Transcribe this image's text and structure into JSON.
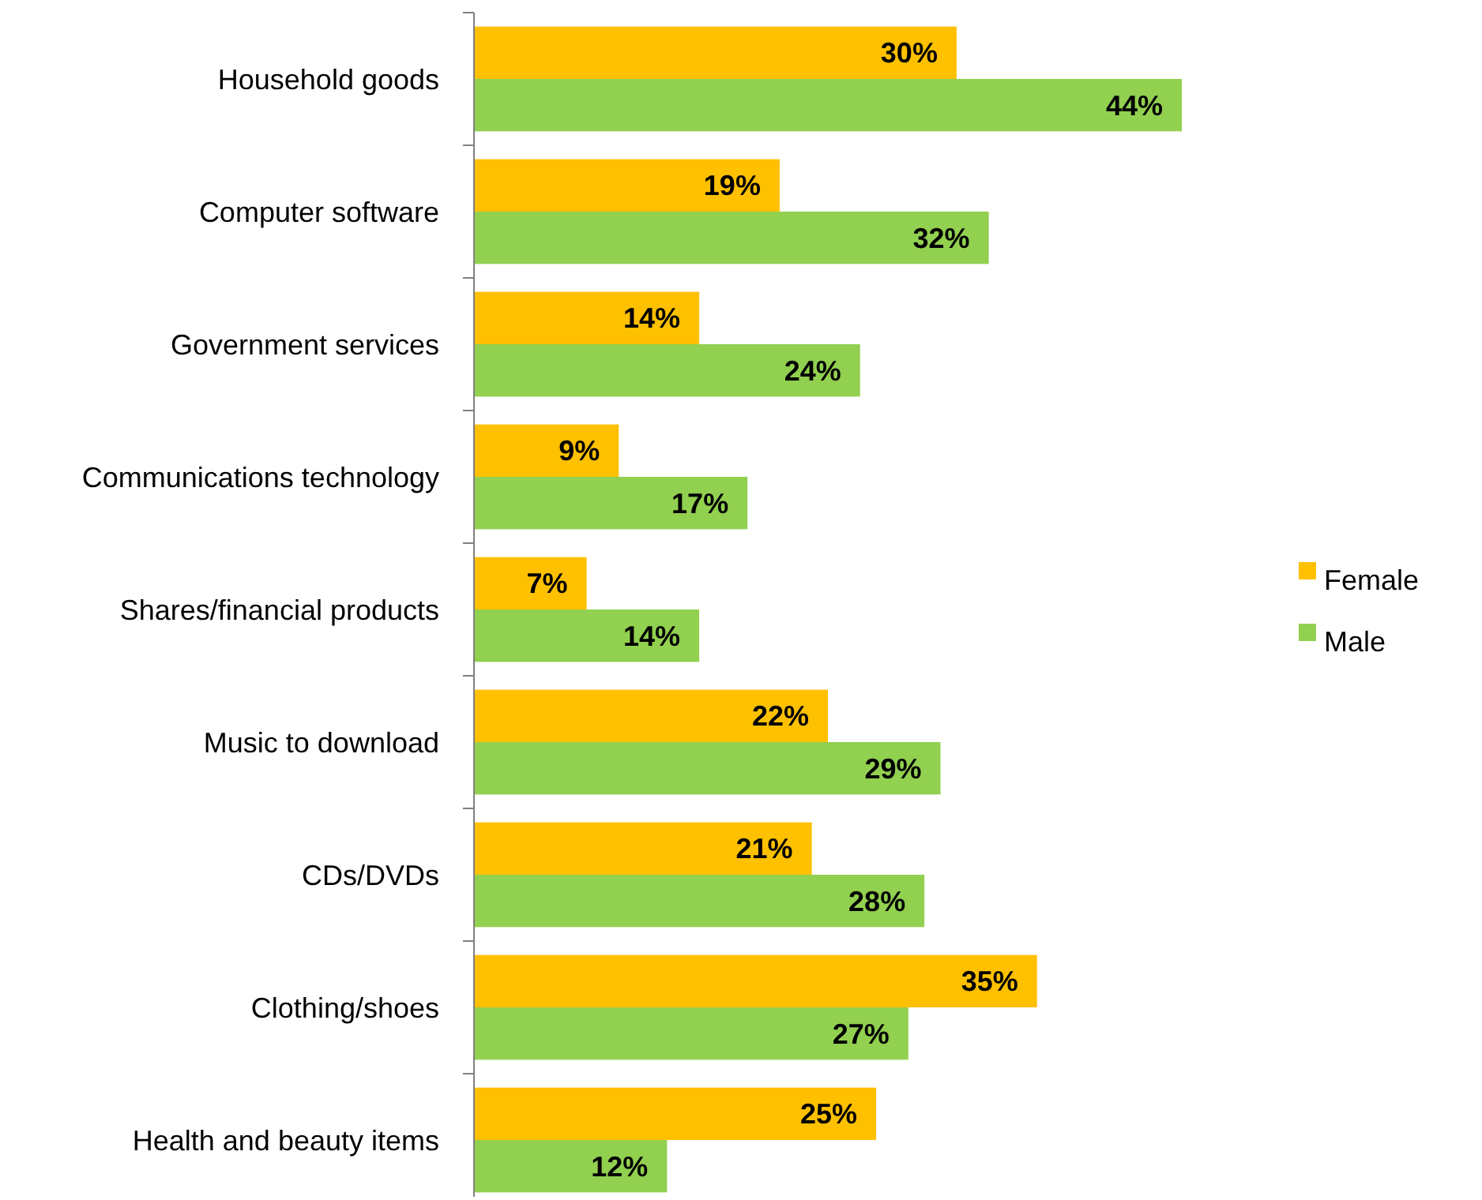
{
  "chart_data": {
    "type": "bar",
    "orientation": "horizontal",
    "categories": [
      "Household goods",
      "Computer software",
      "Government services",
      "Communications technology",
      "Shares/financial products",
      "Music to download",
      "CDs/DVDs",
      "Clothing/shoes",
      "Health and beauty items"
    ],
    "series": [
      {
        "name": "Female",
        "color": "#ffc000",
        "values": [
          30,
          19,
          14,
          9,
          7,
          22,
          21,
          35,
          25
        ],
        "value_labels": [
          "30%",
          "19%",
          "14%",
          "9%",
          "7%",
          "22%",
          "21%",
          "35%",
          "25%"
        ]
      },
      {
        "name": "Male",
        "color": "#92d050",
        "values": [
          44,
          32,
          24,
          17,
          14,
          29,
          28,
          27,
          12
        ],
        "value_labels": [
          "44%",
          "32%",
          "24%",
          "17%",
          "14%",
          "29%",
          "28%",
          "27%",
          "12%"
        ]
      }
    ],
    "legend": "right"
  }
}
